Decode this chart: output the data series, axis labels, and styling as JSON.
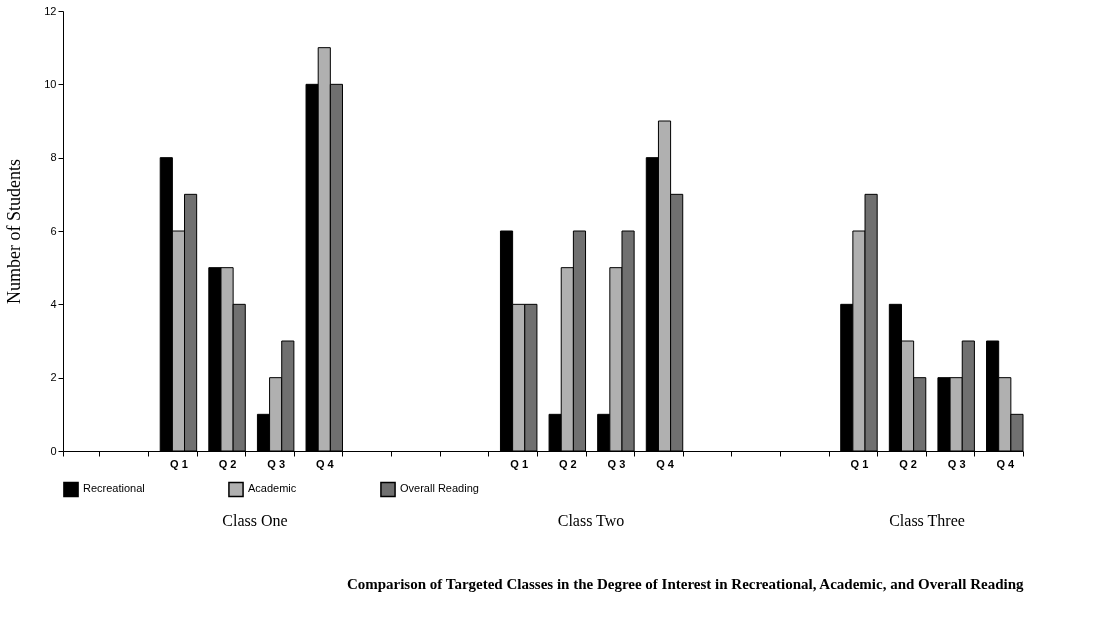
{
  "chart_data": {
    "type": "bar",
    "title": "Comparison of  Targeted Classes in the Degree of Interest in Recreational, Academic, and Overall Reading",
    "ylabel": "Number of Students",
    "categories": [
      null,
      null,
      "Q 1",
      "Q 2",
      "Q 3",
      "Q 4",
      null,
      null,
      null,
      "Q 1",
      "Q 2",
      "Q 3",
      "Q 4",
      null,
      null,
      null,
      "Q 1",
      "Q 2",
      "Q 3",
      "Q 4"
    ],
    "series": [
      {
        "name": "Recreational",
        "color": "#000000",
        "values": [
          null,
          null,
          8,
          5,
          1,
          10,
          null,
          null,
          null,
          6,
          1,
          1,
          8,
          null,
          null,
          null,
          4,
          4,
          2,
          3
        ]
      },
      {
        "name": "Academic",
        "color": "#b0b0b0",
        "values": [
          null,
          null,
          6,
          5,
          2,
          11,
          null,
          null,
          null,
          4,
          5,
          5,
          9,
          null,
          null,
          null,
          6,
          3,
          2,
          2
        ]
      },
      {
        "name": "Overall Reading",
        "color": "#707070",
        "values": [
          null,
          null,
          7,
          4,
          3,
          10,
          null,
          null,
          null,
          4,
          6,
          6,
          7,
          null,
          null,
          null,
          7,
          2,
          3,
          1
        ]
      }
    ],
    "ylim": [
      0,
      12
    ],
    "yticks": [
      0,
      2,
      4,
      6,
      8,
      10,
      12
    ],
    "grid": false,
    "legend": "bottom",
    "annotations": [
      "Class One",
      "Class Two",
      "Class Three"
    ]
  }
}
